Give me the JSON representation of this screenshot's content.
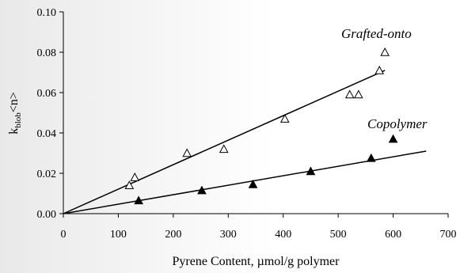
{
  "chart_data": {
    "type": "scatter",
    "title": "",
    "xlabel": "Pyrene Content, µmol/g polymer",
    "ylabel": {
      "main": "k",
      "sub": "blob",
      "tail": "<n>"
    },
    "xlim": [
      0,
      700
    ],
    "ylim": [
      0,
      0.1
    ],
    "x_ticks": [
      0,
      100,
      200,
      300,
      400,
      500,
      600,
      700
    ],
    "y_ticks": [
      0.0,
      0.02,
      0.04,
      0.06,
      0.08,
      0.1
    ],
    "y_tick_labels": [
      "0.00",
      "0.02",
      "0.04",
      "0.06",
      "0.08",
      "0.10"
    ],
    "grid": false,
    "legend": "none",
    "series": [
      {
        "name": "Grafted-onto",
        "marker": "open-triangle",
        "points": [
          {
            "x": 120,
            "y": 0.014
          },
          {
            "x": 130,
            "y": 0.018
          },
          {
            "x": 225,
            "y": 0.03
          },
          {
            "x": 292,
            "y": 0.032
          },
          {
            "x": 403,
            "y": 0.047
          },
          {
            "x": 521,
            "y": 0.059
          },
          {
            "x": 537,
            "y": 0.059
          },
          {
            "x": 575,
            "y": 0.071
          },
          {
            "x": 585,
            "y": 0.08
          }
        ],
        "fit_line": {
          "x0": 0,
          "y0": 0,
          "x1": 585,
          "y1": 0.071
        }
      },
      {
        "name": "Copolymer",
        "marker": "filled-triangle",
        "points": [
          {
            "x": 137,
            "y": 0.0065
          },
          {
            "x": 252,
            "y": 0.0115
          },
          {
            "x": 345,
            "y": 0.0145
          },
          {
            "x": 450,
            "y": 0.021
          },
          {
            "x": 560,
            "y": 0.0275
          },
          {
            "x": 600,
            "y": 0.037
          }
        ],
        "fit_line": {
          "x0": 0,
          "y0": 0,
          "x1": 660,
          "y1": 0.031
        }
      }
    ]
  }
}
